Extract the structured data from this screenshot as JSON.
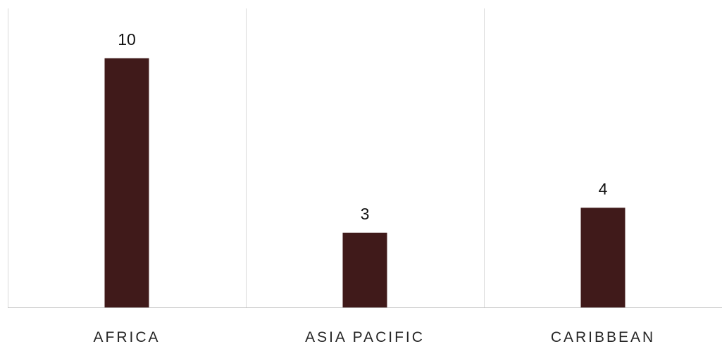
{
  "chart_data": {
    "type": "bar",
    "categories": [
      "AFRICA",
      "ASIA PACIFIC",
      "CARIBBEAN"
    ],
    "values": [
      10,
      3,
      4
    ],
    "data_labels": [
      "10",
      "3",
      "4"
    ],
    "title": "",
    "xlabel": "",
    "ylabel": "",
    "ylim": [
      0,
      12
    ],
    "grid": "vertical category separators",
    "legend": "none",
    "bar_color": "#401A1A",
    "grid_color": "#D9D9D9",
    "axis_color": "#BFBFBF"
  }
}
